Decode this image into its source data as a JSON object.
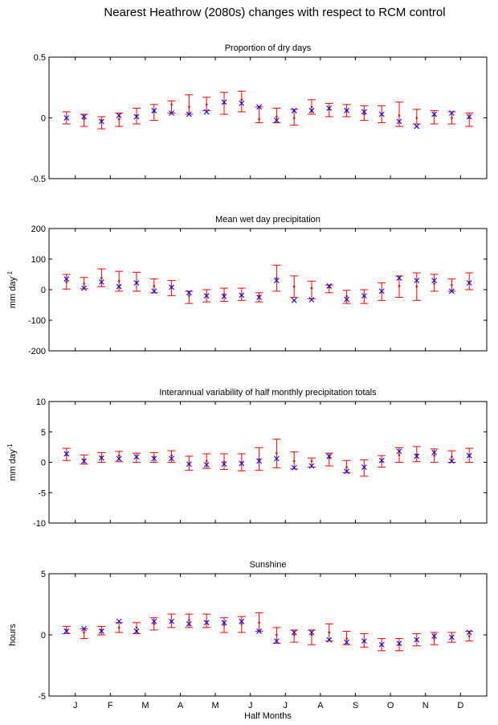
{
  "figure_title": "Nearest Heathrow (2080s) changes with respect to RCM control",
  "colors": {
    "error_bar": "#ff0000",
    "observed_marker": "#0000ff",
    "axes": "#000000"
  },
  "chart_data": [
    {
      "type": "errorbar",
      "title": "Proportion of dry days",
      "ylabel": "",
      "ylim": [
        -0.5,
        0.5
      ],
      "yticks": [
        "-0.5",
        "0",
        "0.5"
      ],
      "x": [
        1,
        2,
        3,
        4,
        5,
        6,
        7,
        8,
        9,
        10,
        11,
        12,
        13,
        14,
        15,
        16,
        17,
        18,
        19,
        20,
        21,
        22,
        23,
        24
      ],
      "series": [
        {
          "center": [
            0.0,
            -0.01,
            -0.02,
            -0.01,
            0.02,
            0.05,
            0.11,
            0.09,
            0.11,
            0.12,
            0.15,
            -0.01,
            0.01,
            0.0,
            0.09,
            0.07,
            0.06,
            0.03,
            0.03,
            0.02,
            0.0,
            0.02,
            0.0,
            0.0
          ],
          "low": [
            -0.05,
            -0.07,
            -0.09,
            -0.07,
            -0.05,
            -0.02,
            0.04,
            0.03,
            0.06,
            0.03,
            0.05,
            -0.04,
            -0.04,
            -0.06,
            0.03,
            0.01,
            0.01,
            -0.02,
            -0.04,
            -0.07,
            -0.05,
            -0.05,
            -0.05,
            -0.07
          ],
          "high": [
            0.05,
            0.03,
            0.01,
            0.04,
            0.08,
            0.11,
            0.14,
            0.19,
            0.17,
            0.21,
            0.22,
            0.09,
            0.08,
            0.07,
            0.15,
            0.12,
            0.11,
            0.1,
            0.1,
            0.13,
            0.07,
            0.06,
            0.05,
            0.04
          ]
        },
        {
          "values": [
            0.0,
            0.01,
            -0.03,
            0.02,
            0.01,
            0.06,
            0.04,
            0.03,
            0.05,
            0.13,
            0.12,
            0.09,
            -0.02,
            0.06,
            0.06,
            0.08,
            0.06,
            0.05,
            0.03,
            -0.03,
            -0.07,
            0.03,
            0.04,
            0.01
          ]
        }
      ]
    },
    {
      "type": "errorbar",
      "title": "Mean wet day precipitation",
      "ylabel": "mm day",
      "ylabel_sup": "-1",
      "ylim": [
        -200,
        200
      ],
      "yticks": [
        "-200",
        "-100",
        "0",
        "100",
        "200"
      ],
      "x": [
        1,
        2,
        3,
        4,
        5,
        6,
        7,
        8,
        9,
        10,
        11,
        12,
        13,
        14,
        15,
        16,
        17,
        18,
        19,
        20,
        21,
        22,
        23,
        24
      ],
      "series": [
        {
          "center": [
            25,
            20,
            38,
            28,
            25,
            12,
            10,
            -20,
            -18,
            -14,
            -17,
            -20,
            38,
            10,
            5,
            8,
            -22,
            -22,
            -7,
            12,
            10,
            20,
            15,
            25
          ],
          "low": [
            2,
            3,
            10,
            -5,
            -5,
            -10,
            -20,
            -45,
            -40,
            -38,
            -35,
            -40,
            -5,
            -25,
            -30,
            -10,
            -45,
            -45,
            -35,
            -25,
            -35,
            -5,
            -5,
            0
          ],
          "high": [
            50,
            40,
            68,
            60,
            57,
            35,
            30,
            -5,
            0,
            5,
            5,
            -10,
            80,
            45,
            28,
            15,
            -2,
            0,
            22,
            45,
            55,
            50,
            35,
            55
          ]
        },
        {
          "values": [
            35,
            5,
            25,
            10,
            22,
            -5,
            8,
            -10,
            -20,
            -22,
            -18,
            -25,
            30,
            -35,
            -33,
            12,
            -32,
            -20,
            -5,
            38,
            30,
            30,
            -5,
            22
          ]
        }
      ]
    },
    {
      "type": "errorbar",
      "title": "Interannual variability of half monthly precipitation totals",
      "ylabel": "mm day",
      "ylabel_sup": "-1",
      "ylim": [
        -10,
        10
      ],
      "yticks": [
        "-10",
        "-5",
        "0",
        "5",
        "10"
      ],
      "x": [
        1,
        2,
        3,
        4,
        5,
        6,
        7,
        8,
        9,
        10,
        11,
        12,
        13,
        14,
        15,
        16,
        17,
        18,
        19,
        20,
        21,
        22,
        23,
        24
      ],
      "series": [
        {
          "center": [
            1.2,
            0.5,
            0.9,
            1.1,
            0.8,
            0.9,
            1.1,
            -0.3,
            0.2,
            0.1,
            0.0,
            0.5,
            1.5,
            0.2,
            0.2,
            0.7,
            -0.8,
            -0.9,
            0.1,
            1.2,
            1.3,
            1.1,
            0.9,
            1.1
          ],
          "low": [
            0.3,
            -0.3,
            0.0,
            0.1,
            0.0,
            0.0,
            0.0,
            -1.3,
            -1.0,
            -1.2,
            -1.4,
            -1.3,
            -0.9,
            -1.1,
            -0.8,
            -0.6,
            -1.7,
            -2.3,
            -0.8,
            0.0,
            0.1,
            0.0,
            0.0,
            0.0
          ],
          "high": [
            2.3,
            1.2,
            1.6,
            1.8,
            1.5,
            1.6,
            1.9,
            1.0,
            1.4,
            1.4,
            1.4,
            2.4,
            3.8,
            1.7,
            0.7,
            1.5,
            0.3,
            0.4,
            1.1,
            2.4,
            2.6,
            2.2,
            1.9,
            2.3
          ]
        },
        {
          "values": [
            1.4,
            0.2,
            0.7,
            0.6,
            0.9,
            0.6,
            0.6,
            -0.3,
            -0.4,
            -0.3,
            -0.2,
            0.2,
            0.6,
            -0.9,
            -0.6,
            1.0,
            -1.5,
            -0.8,
            0.3,
            1.8,
            1.0,
            1.6,
            0.2,
            1.1
          ]
        }
      ]
    },
    {
      "type": "errorbar",
      "title": "Sunshine",
      "ylabel": "hours",
      "ylabel_sup": "",
      "ylim": [
        -5,
        5
      ],
      "yticks": [
        "-5",
        "0",
        "5"
      ],
      "x": [
        1,
        2,
        3,
        4,
        5,
        6,
        7,
        8,
        9,
        10,
        11,
        12,
        13,
        14,
        15,
        16,
        17,
        18,
        19,
        20,
        21,
        22,
        23,
        24
      ],
      "series": [
        {
          "center": [
            0.4,
            0.2,
            0.4,
            0.6,
            0.6,
            0.9,
            1.1,
            1.2,
            1.1,
            0.8,
            0.9,
            1.0,
            0.0,
            0.0,
            0.0,
            0.2,
            -0.3,
            -0.5,
            -0.8,
            -0.8,
            -0.4,
            -0.3,
            -0.2,
            -0.1
          ],
          "low": [
            0.1,
            -0.3,
            0.0,
            0.2,
            0.1,
            0.4,
            0.6,
            0.6,
            0.6,
            0.2,
            0.2,
            0.3,
            -0.7,
            -0.6,
            -0.8,
            -0.5,
            -0.8,
            -1.0,
            -1.3,
            -1.3,
            -0.9,
            -0.8,
            -0.6,
            -0.5
          ],
          "high": [
            0.7,
            0.5,
            0.7,
            1.0,
            1.0,
            1.4,
            1.7,
            1.7,
            1.7,
            1.4,
            1.5,
            1.8,
            0.6,
            0.4,
            0.4,
            0.9,
            0.3,
            0.1,
            -0.3,
            -0.3,
            0.1,
            0.2,
            0.2,
            0.3
          ]
        },
        {
          "values": [
            0.3,
            0.5,
            0.3,
            1.1,
            0.3,
            1.1,
            1.1,
            0.9,
            1.0,
            1.0,
            1.1,
            0.3,
            -0.5,
            0.2,
            0.2,
            -0.4,
            -0.6,
            -0.5,
            -0.8,
            -0.7,
            -0.4,
            -0.1,
            -0.2,
            0.2
          ]
        }
      ]
    }
  ],
  "xaxis": {
    "label": "Half Months",
    "ticks": [
      "J",
      "F",
      "M",
      "A",
      "M",
      "J",
      "J",
      "A",
      "S",
      "O",
      "N",
      "D"
    ],
    "tick_positions": [
      1.5,
      3.5,
      5.5,
      7.5,
      9.5,
      11.5,
      13.5,
      15.5,
      17.5,
      19.5,
      21.5,
      23.5
    ],
    "xlim": [
      0,
      25
    ]
  }
}
